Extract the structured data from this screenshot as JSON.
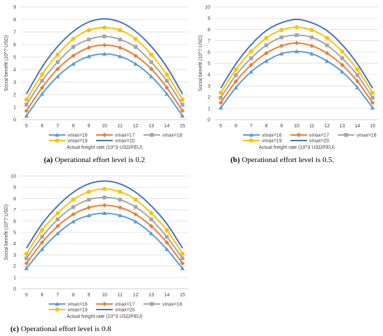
{
  "colors": {
    "vmax16": "#5B9BD5",
    "vmax17": "#ED7D31",
    "vmax18": "#A5A5A5",
    "vmax19": "#FFC000",
    "vmax20": "#4472C4",
    "grid": "#D9D9D9",
    "axis": "#BFBFBF"
  },
  "chart_data": [
    {
      "type": "line",
      "caption_label": "(a)",
      "caption_text": "Operational effort level is 0.2",
      "xlabel": "Actual freight rate (10^3 USD/FEU)",
      "ylabel": "Social benefit (10^7 USD)",
      "ylim": [
        0,
        9
      ],
      "yticks": [
        0,
        1,
        2,
        3,
        4,
        5,
        6,
        7,
        8,
        9
      ],
      "x": [
        5,
        6,
        7,
        8,
        9,
        10,
        11,
        12,
        13,
        14,
        15
      ],
      "grid": "horizontal",
      "legend_position": "bottom",
      "series": [
        {
          "name": "vmax=16",
          "marker": "triangle",
          "values": [
            0.3,
            2.05,
            3.45,
            4.45,
            5.05,
            5.25,
            5.05,
            4.45,
            3.45,
            2.05,
            0.3
          ]
        },
        {
          "name": "vmax=17",
          "marker": "diamond",
          "values": [
            0.7,
            2.55,
            4.05,
            5.1,
            5.75,
            5.95,
            5.75,
            5.1,
            4.05,
            2.55,
            0.7
          ]
        },
        {
          "name": "vmax=18",
          "marker": "square",
          "values": [
            1.2,
            3.1,
            4.6,
            5.8,
            6.4,
            6.65,
            6.4,
            5.8,
            4.6,
            3.1,
            1.2
          ]
        },
        {
          "name": "vmax=19",
          "marker": "circle",
          "values": [
            1.6,
            3.6,
            5.2,
            6.45,
            7.15,
            7.35,
            7.15,
            6.45,
            5.2,
            3.6,
            1.6
          ]
        },
        {
          "name": "vmax=20",
          "marker": "none",
          "values": [
            2.05,
            4.2,
            5.85,
            7.05,
            7.8,
            8.05,
            7.8,
            7.05,
            5.85,
            4.2,
            2.05
          ]
        }
      ]
    },
    {
      "type": "line",
      "caption_label": "(b)",
      "caption_text": "Operational effort level is 0.5.",
      "xlabel": "Actual freight rate (10^3 USD/FEU)",
      "ylabel": "Social benefit (10^7 USD)",
      "ylim": [
        0,
        10
      ],
      "yticks": [
        0,
        1,
        2,
        3,
        4,
        5,
        6,
        7,
        8,
        9,
        10
      ],
      "x": [
        5,
        6,
        7,
        8,
        9,
        10,
        11,
        12,
        13,
        14,
        15
      ],
      "grid": "horizontal",
      "legend_position": "bottom",
      "series": [
        {
          "name": "vmax=16",
          "marker": "triangle",
          "values": [
            1.05,
            2.85,
            4.25,
            5.2,
            5.85,
            6.05,
            5.85,
            5.2,
            4.25,
            2.85,
            1.05
          ]
        },
        {
          "name": "vmax=17",
          "marker": "diamond",
          "values": [
            1.5,
            3.4,
            4.85,
            5.9,
            6.55,
            6.8,
            6.55,
            5.9,
            4.85,
            3.4,
            1.5
          ]
        },
        {
          "name": "vmax=18",
          "marker": "square",
          "values": [
            1.95,
            3.95,
            5.45,
            6.6,
            7.3,
            7.5,
            7.3,
            6.6,
            5.45,
            3.95,
            1.95
          ]
        },
        {
          "name": "vmax=19",
          "marker": "circle",
          "values": [
            2.4,
            4.45,
            6.05,
            7.25,
            7.95,
            8.2,
            7.95,
            7.25,
            6.05,
            4.45,
            2.4
          ]
        },
        {
          "name": "vmax=20",
          "marker": "none",
          "values": [
            2.8,
            4.95,
            6.65,
            7.9,
            8.6,
            8.9,
            8.6,
            7.9,
            6.65,
            4.95,
            2.8
          ]
        }
      ]
    },
    {
      "type": "line",
      "caption_label": "(c)",
      "caption_text": "Operational effort level is 0.8",
      "xlabel": "Actual freight rate (10^3 USD/FEU)",
      "ylabel": "Social benefit (10^7 USD)",
      "ylim": [
        0,
        10
      ],
      "yticks": [
        0,
        1,
        2,
        3,
        4,
        5,
        6,
        7,
        8,
        9,
        10
      ],
      "x": [
        5,
        6,
        7,
        8,
        9,
        10,
        11,
        12,
        13,
        14,
        15
      ],
      "grid": "horizontal",
      "legend_position": "bottom",
      "series": [
        {
          "name": "vmax=16",
          "marker": "triangle",
          "values": [
            1.8,
            3.5,
            4.9,
            5.95,
            6.5,
            6.7,
            6.5,
            5.95,
            4.9,
            3.5,
            1.8
          ]
        },
        {
          "name": "vmax=17",
          "marker": "diamond",
          "values": [
            2.25,
            4.1,
            5.55,
            6.6,
            7.2,
            7.4,
            7.2,
            6.6,
            5.55,
            4.1,
            2.25
          ]
        },
        {
          "name": "vmax=18",
          "marker": "square",
          "values": [
            2.7,
            4.6,
            6.15,
            7.25,
            7.9,
            8.1,
            7.9,
            7.25,
            6.15,
            4.6,
            2.7
          ]
        },
        {
          "name": "vmax=19",
          "marker": "circle",
          "values": [
            3.1,
            5.2,
            6.7,
            7.9,
            8.6,
            8.85,
            8.6,
            7.9,
            6.7,
            5.2,
            3.1
          ]
        },
        {
          "name": "vmax=20",
          "marker": "none",
          "values": [
            3.6,
            5.75,
            7.35,
            8.55,
            9.3,
            9.55,
            9.3,
            8.55,
            7.35,
            5.75,
            3.6
          ]
        }
      ]
    }
  ]
}
